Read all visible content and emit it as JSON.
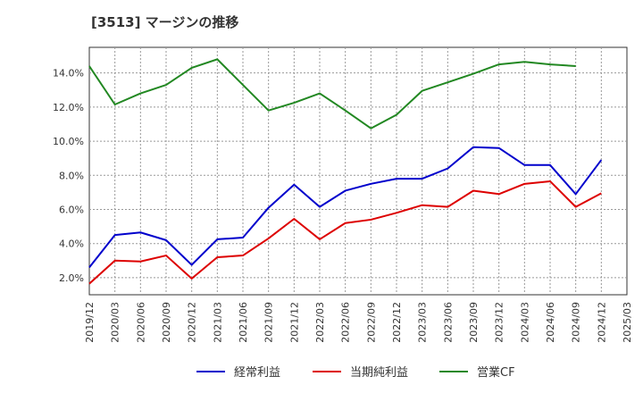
{
  "chart_data": {
    "type": "line",
    "title": "[3513]  マージンの推移",
    "x": [
      "2019/12",
      "2020/03",
      "2020/06",
      "2020/09",
      "2020/12",
      "2021/03",
      "2021/06",
      "2021/09",
      "2021/12",
      "2022/03",
      "2022/06",
      "2022/09",
      "2022/12",
      "2023/03",
      "2023/06",
      "2023/09",
      "2023/12",
      "2024/03",
      "2024/06",
      "2024/09",
      "2024/12",
      "2025/03"
    ],
    "series": [
      {
        "name": "経常利益",
        "color": "#0000cc",
        "values": [
          2.6,
          4.5,
          4.65,
          4.2,
          2.75,
          4.25,
          4.35,
          6.1,
          7.45,
          6.15,
          7.1,
          7.5,
          7.8,
          7.8,
          8.4,
          9.65,
          9.6,
          8.6,
          8.6,
          6.9,
          8.9,
          null
        ]
      },
      {
        "name": "当期純利益",
        "color": "#dd0000",
        "values": [
          1.65,
          3.0,
          2.95,
          3.3,
          1.95,
          3.2,
          3.3,
          4.3,
          5.45,
          4.25,
          5.2,
          5.4,
          5.8,
          6.25,
          6.15,
          7.1,
          6.9,
          7.5,
          7.65,
          6.15,
          6.95,
          null
        ]
      },
      {
        "name": "営業CF",
        "color": "#228822",
        "values": [
          14.4,
          12.15,
          12.8,
          13.3,
          14.3,
          14.8,
          13.3,
          11.8,
          12.25,
          12.8,
          11.8,
          10.75,
          11.55,
          12.95,
          13.45,
          13.95,
          14.5,
          14.65,
          14.5,
          14.4,
          null,
          null
        ]
      }
    ],
    "yticks": [
      "2.0%",
      "4.0%",
      "6.0%",
      "8.0%",
      "10.0%",
      "12.0%",
      "14.0%"
    ],
    "ylim": [
      1.0,
      15.5
    ],
    "grid": true,
    "legend_position": "bottom"
  }
}
